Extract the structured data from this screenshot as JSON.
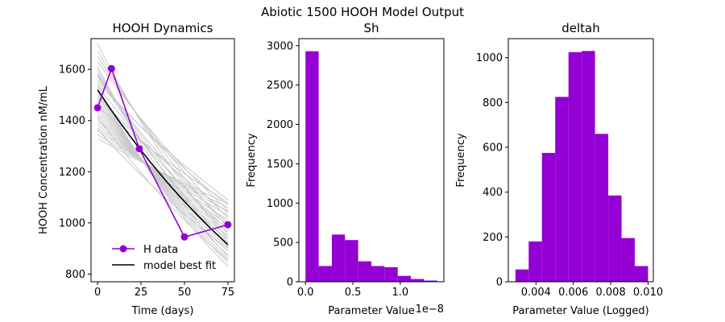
{
  "figure": {
    "suptitle": "Abiotic 1500 HOOH Model Output"
  },
  "chart_data": [
    {
      "type": "line",
      "title": "HOOH Dynamics",
      "xlabel": "Time (days)",
      "ylabel": "HOOH Concentration nM/mL",
      "xlim": [
        -3.75,
        78.75
      ],
      "ylim": [
        770,
        1720
      ],
      "xticks": [
        0,
        25,
        50,
        75
      ],
      "yticks": [
        800,
        1000,
        1200,
        1400,
        1600
      ],
      "legend_position": "lower-left",
      "colors": {
        "data": "#9400d3",
        "fit": "#000000",
        "ensemble": "#c8c8c8"
      },
      "series": [
        {
          "name": "H data",
          "marker": "circle",
          "x": [
            0,
            8,
            24,
            50,
            75
          ],
          "y": [
            1450,
            1603,
            1290,
            945,
            993
          ]
        },
        {
          "name": " model best fit",
          "x": [
            0,
            75
          ],
          "y0": 1520,
          "y_end": 915
        }
      ],
      "ensemble": {
        "x": [
          0,
          75
        ],
        "starts": [
          1330,
          1345,
          1360,
          1372,
          1385,
          1398,
          1410,
          1422,
          1435,
          1448,
          1460,
          1472,
          1485,
          1498,
          1510,
          1522,
          1535,
          1548,
          1560,
          1572,
          1585,
          1598,
          1612,
          1630,
          1650,
          1672,
          1700,
          1365,
          1415,
          1455,
          1495,
          1540,
          1580
        ],
        "ends": [
          1075,
          1060,
          1045,
          1030,
          1012,
          995,
          980,
          965,
          950,
          935,
          920,
          905,
          890,
          875,
          860,
          845,
          830,
          1090,
          1070,
          1000,
          960,
          910,
          870,
          1050,
          1020,
          985,
          940,
          900,
          855,
          1080,
          1040,
          975,
          925
        ]
      }
    },
    {
      "type": "bar",
      "title": "Sh",
      "xlabel": "Parameter Value",
      "ylabel": "Frequency",
      "x_offset_text": "1e−8",
      "xlim": [
        -0.07,
        1.46
      ],
      "ylim": [
        0,
        3090
      ],
      "xticks": [
        0.0,
        0.5,
        1.0
      ],
      "xticklabels": [
        "0.0",
        "0.5",
        "1.0"
      ],
      "yticks": [
        0,
        500,
        1000,
        1500,
        2000,
        2500,
        3000
      ],
      "color": "#9400d3",
      "bin_edges": [
        0.0,
        0.139,
        0.278,
        0.417,
        0.556,
        0.695,
        0.834,
        0.973,
        1.112,
        1.251,
        1.39
      ],
      "values": [
        2930,
        200,
        600,
        530,
        260,
        200,
        185,
        75,
        35,
        15
      ]
    },
    {
      "type": "bar",
      "title": "deltah",
      "xlabel": "Parameter Value (Logged)",
      "ylabel": "Frequency",
      "xlim": [
        0.00252,
        0.01028
      ],
      "ylim": [
        0,
        1085
      ],
      "xticks": [
        0.004,
        0.006,
        0.008,
        0.01
      ],
      "xticklabels": [
        "0.004",
        "0.006",
        "0.008",
        "0.010"
      ],
      "yticks": [
        0,
        200,
        400,
        600,
        800,
        1000
      ],
      "color": "#9400d3",
      "bin_edges": [
        0.0029,
        0.00361,
        0.00432,
        0.00503,
        0.00574,
        0.00645,
        0.00716,
        0.00787,
        0.00858,
        0.00929,
        0.01
      ],
      "values": [
        55,
        180,
        575,
        825,
        1025,
        1030,
        660,
        385,
        195,
        70
      ]
    }
  ]
}
